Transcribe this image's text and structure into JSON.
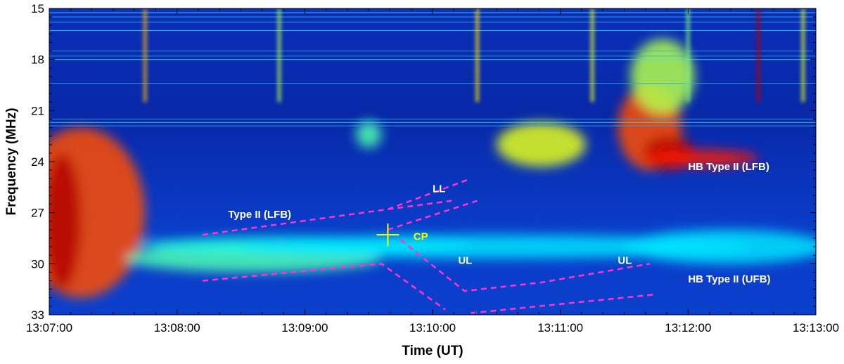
{
  "chart_data": {
    "type": "heatmap",
    "title": "",
    "xlabel": "Time (UT)",
    "ylabel": "Frequency (MHz)",
    "x_ticks": [
      "13:07:00",
      "13:08:00",
      "13:09:00",
      "13:10:00",
      "13:11:00",
      "13:12:00",
      "13:13:00"
    ],
    "x_range_minutes": [
      0,
      6
    ],
    "y_ticks": [
      15,
      18,
      21,
      24,
      27,
      30,
      33
    ],
    "ylim": [
      15,
      33
    ],
    "y_inverted": true,
    "colormap": "jet",
    "grid": false,
    "annotations": [
      {
        "text": "LL",
        "x": 3.0,
        "y": 25.8,
        "color": "#ffffff"
      },
      {
        "text": "Type II (LFB)",
        "x": 1.4,
        "y": 27.3,
        "color": "#ffffff"
      },
      {
        "text": "CP",
        "x": 2.85,
        "y": 28.6,
        "color": "#ffff00"
      },
      {
        "text": "UL",
        "x": 3.2,
        "y": 30.0,
        "color": "#ffffff"
      },
      {
        "text": "UL",
        "x": 4.45,
        "y": 30.0,
        "color": "#ffffff"
      },
      {
        "text": "HB Type II (LFB)",
        "x": 5.0,
        "y": 24.5,
        "color": "#ffffff"
      },
      {
        "text": "HB Type II (UFB)",
        "x": 5.0,
        "y": 31.1,
        "color": "#ffffff"
      }
    ],
    "dashed_lines": [
      {
        "name": "type-ii-lfb-line",
        "color": "#ff33cc",
        "points": [
          [
            1.2,
            28.3
          ],
          [
            2.65,
            26.8
          ],
          [
            3.15,
            26.3
          ]
        ]
      },
      {
        "name": "ll-branch-line",
        "color": "#ff33cc",
        "points": [
          [
            2.65,
            26.8
          ],
          [
            3.3,
            25.0
          ]
        ]
      },
      {
        "name": "ul-fork-line",
        "color": "#ff33cc",
        "points": [
          [
            2.65,
            28.0
          ],
          [
            3.35,
            26.3
          ]
        ]
      },
      {
        "name": "upper-dashed-line",
        "color": "#ff33cc",
        "points": [
          [
            1.2,
            31.0
          ],
          [
            2.6,
            30.0
          ],
          [
            3.1,
            32.7
          ]
        ]
      },
      {
        "name": "ul-drift-line",
        "color": "#ff33cc",
        "points": [
          [
            2.75,
            28.6
          ],
          [
            3.25,
            31.6
          ],
          [
            3.85,
            31.1
          ],
          [
            4.7,
            30.0
          ]
        ]
      },
      {
        "name": "lower-ul-line",
        "color": "#ff33cc",
        "points": [
          [
            3.3,
            32.9
          ],
          [
            4.75,
            31.8
          ]
        ]
      }
    ],
    "crosshair": {
      "x": 2.65,
      "y": 28.3,
      "color": "#ffff00"
    },
    "bursts": [
      {
        "x": 0.25,
        "y": 27.0,
        "rx": 0.5,
        "ry": 5.0,
        "level": 0.8
      },
      {
        "x": 0.1,
        "y": 27.5,
        "rx": 0.15,
        "ry": 4.0,
        "level": 0.95
      },
      {
        "x": 1.6,
        "y": 29.7,
        "rx": 1.0,
        "ry": 0.8,
        "level": 0.45
      },
      {
        "x": 2.0,
        "y": 28.9,
        "rx": 1.3,
        "ry": 0.5,
        "level": 0.4
      },
      {
        "x": 3.5,
        "y": 29.0,
        "rx": 2.0,
        "ry": 0.7,
        "level": 0.35
      },
      {
        "x": 2.5,
        "y": 22.4,
        "rx": 0.1,
        "ry": 0.8,
        "level": 0.45
      },
      {
        "x": 3.85,
        "y": 23.0,
        "rx": 0.35,
        "ry": 1.3,
        "level": 0.6
      },
      {
        "x": 4.7,
        "y": 22.0,
        "rx": 0.25,
        "ry": 2.5,
        "level": 0.8
      },
      {
        "x": 4.85,
        "y": 23.5,
        "rx": 0.2,
        "ry": 1.0,
        "level": 0.95
      },
      {
        "x": 5.1,
        "y": 23.8,
        "rx": 0.45,
        "ry": 0.5,
        "level": 0.85
      },
      {
        "x": 4.8,
        "y": 19.0,
        "rx": 0.25,
        "ry": 2.2,
        "level": 0.55
      },
      {
        "x": 5.3,
        "y": 29.0,
        "rx": 0.8,
        "ry": 1.0,
        "level": 0.35
      }
    ],
    "vertical_lines": [
      {
        "x": 0.75,
        "level": 0.7
      },
      {
        "x": 1.8,
        "level": 0.55
      },
      {
        "x": 3.35,
        "level": 0.65
      },
      {
        "x": 4.25,
        "level": 0.6
      },
      {
        "x": 5.0,
        "level": 0.5
      },
      {
        "x": 5.55,
        "level": 0.95
      },
      {
        "x": 5.9,
        "level": 0.6
      }
    ]
  }
}
